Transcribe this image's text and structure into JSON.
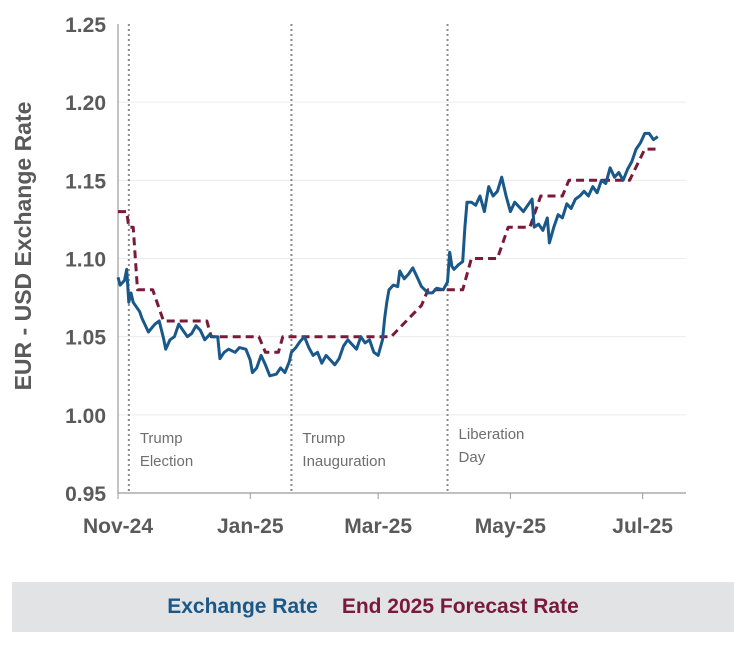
{
  "chart_data": {
    "type": "line",
    "xlabel": "",
    "ylabel": "EUR - USD Exchange Rate",
    "ylim": [
      0.95,
      1.25
    ],
    "xlim": [
      "2024-11-01",
      "2025-07-21"
    ],
    "yticks": [
      "1.25",
      "1.20",
      "1.15",
      "1.10",
      "1.05",
      "1.00",
      "0.95"
    ],
    "xticks": [
      {
        "date": "2024-11-01",
        "label": "Nov-24"
      },
      {
        "date": "2025-01-01",
        "label": "Jan-25"
      },
      {
        "date": "2025-03-01",
        "label": "Mar-25"
      },
      {
        "date": "2025-05-01",
        "label": "May-25"
      },
      {
        "date": "2025-07-01",
        "label": "Jul-25"
      }
    ],
    "grid": "horizontal",
    "legend_position": "bottom",
    "events": [
      {
        "date": "2024-11-06",
        "label_lines": [
          "Trump",
          "Election"
        ]
      },
      {
        "date": "2025-01-20",
        "label_lines": [
          "Trump",
          "Inauguration"
        ]
      },
      {
        "date": "2025-04-02",
        "label_lines": [
          "Liberation",
          "Day"
        ]
      }
    ],
    "series": [
      {
        "name": "Exchange Rate",
        "color": "#1a5889",
        "style": "solid",
        "points": [
          [
            "2024-11-01",
            1.088
          ],
          [
            "2024-11-02",
            1.083
          ],
          [
            "2024-11-04",
            1.086
          ],
          [
            "2024-11-05",
            1.093
          ],
          [
            "2024-11-06",
            1.072
          ],
          [
            "2024-11-07",
            1.078
          ],
          [
            "2024-11-08",
            1.072
          ],
          [
            "2024-11-11",
            1.066
          ],
          [
            "2024-11-12",
            1.062
          ],
          [
            "2024-11-14",
            1.056
          ],
          [
            "2024-11-15",
            1.053
          ],
          [
            "2024-11-18",
            1.058
          ],
          [
            "2024-11-20",
            1.06
          ],
          [
            "2024-11-22",
            1.049
          ],
          [
            "2024-11-23",
            1.042
          ],
          [
            "2024-11-25",
            1.048
          ],
          [
            "2024-11-27",
            1.05
          ],
          [
            "2024-11-29",
            1.058
          ],
          [
            "2024-12-01",
            1.054
          ],
          [
            "2024-12-03",
            1.05
          ],
          [
            "2024-12-05",
            1.052
          ],
          [
            "2024-12-07",
            1.057
          ],
          [
            "2024-12-09",
            1.054
          ],
          [
            "2024-12-11",
            1.048
          ],
          [
            "2024-12-13",
            1.051
          ],
          [
            "2024-12-15",
            1.05
          ],
          [
            "2024-12-17",
            1.05
          ],
          [
            "2024-12-18",
            1.036
          ],
          [
            "2024-12-20",
            1.04
          ],
          [
            "2024-12-22",
            1.042
          ],
          [
            "2024-12-25",
            1.04
          ],
          [
            "2024-12-27",
            1.043
          ],
          [
            "2024-12-30",
            1.042
          ],
          [
            "2025-01-01",
            1.035
          ],
          [
            "2025-01-02",
            1.027
          ],
          [
            "2025-01-04",
            1.03
          ],
          [
            "2025-01-06",
            1.038
          ],
          [
            "2025-01-08",
            1.032
          ],
          [
            "2025-01-10",
            1.025
          ],
          [
            "2025-01-13",
            1.026
          ],
          [
            "2025-01-15",
            1.03
          ],
          [
            "2025-01-17",
            1.027
          ],
          [
            "2025-01-19",
            1.034
          ],
          [
            "2025-01-20",
            1.04
          ],
          [
            "2025-01-22",
            1.043
          ],
          [
            "2025-01-24",
            1.047
          ],
          [
            "2025-01-26",
            1.05
          ],
          [
            "2025-01-28",
            1.043
          ],
          [
            "2025-01-30",
            1.038
          ],
          [
            "2025-02-01",
            1.04
          ],
          [
            "2025-02-03",
            1.033
          ],
          [
            "2025-02-05",
            1.038
          ],
          [
            "2025-02-07",
            1.035
          ],
          [
            "2025-02-09",
            1.032
          ],
          [
            "2025-02-11",
            1.036
          ],
          [
            "2025-02-13",
            1.044
          ],
          [
            "2025-02-15",
            1.048
          ],
          [
            "2025-02-17",
            1.045
          ],
          [
            "2025-02-19",
            1.042
          ],
          [
            "2025-02-21",
            1.05
          ],
          [
            "2025-02-23",
            1.046
          ],
          [
            "2025-02-25",
            1.048
          ],
          [
            "2025-02-27",
            1.04
          ],
          [
            "2025-03-01",
            1.038
          ],
          [
            "2025-03-03",
            1.048
          ],
          [
            "2025-03-04",
            1.062
          ],
          [
            "2025-03-05",
            1.072
          ],
          [
            "2025-03-06",
            1.08
          ],
          [
            "2025-03-08",
            1.083
          ],
          [
            "2025-03-10",
            1.082
          ],
          [
            "2025-03-11",
            1.092
          ],
          [
            "2025-03-13",
            1.087
          ],
          [
            "2025-03-15",
            1.09
          ],
          [
            "2025-03-17",
            1.094
          ],
          [
            "2025-03-19",
            1.088
          ],
          [
            "2025-03-21",
            1.082
          ],
          [
            "2025-03-24",
            1.078
          ],
          [
            "2025-03-26",
            1.078
          ],
          [
            "2025-03-28",
            1.081
          ],
          [
            "2025-03-31",
            1.08
          ],
          [
            "2025-04-02",
            1.085
          ],
          [
            "2025-04-03",
            1.104
          ],
          [
            "2025-04-04",
            1.095
          ],
          [
            "2025-04-05",
            1.093
          ],
          [
            "2025-04-07",
            1.096
          ],
          [
            "2025-04-09",
            1.098
          ],
          [
            "2025-04-10",
            1.12
          ],
          [
            "2025-04-11",
            1.136
          ],
          [
            "2025-04-13",
            1.136
          ],
          [
            "2025-04-15",
            1.134
          ],
          [
            "2025-04-17",
            1.14
          ],
          [
            "2025-04-19",
            1.13
          ],
          [
            "2025-04-21",
            1.146
          ],
          [
            "2025-04-23",
            1.14
          ],
          [
            "2025-04-25",
            1.143
          ],
          [
            "2025-04-27",
            1.152
          ],
          [
            "2025-04-29",
            1.14
          ],
          [
            "2025-05-01",
            1.13
          ],
          [
            "2025-05-03",
            1.136
          ],
          [
            "2025-05-05",
            1.133
          ],
          [
            "2025-05-07",
            1.13
          ],
          [
            "2025-05-09",
            1.134
          ],
          [
            "2025-05-11",
            1.138
          ],
          [
            "2025-05-12",
            1.12
          ],
          [
            "2025-05-14",
            1.122
          ],
          [
            "2025-05-16",
            1.118
          ],
          [
            "2025-05-18",
            1.126
          ],
          [
            "2025-05-19",
            1.11
          ],
          [
            "2025-05-21",
            1.12
          ],
          [
            "2025-05-23",
            1.128
          ],
          [
            "2025-05-25",
            1.126
          ],
          [
            "2025-05-27",
            1.135
          ],
          [
            "2025-05-29",
            1.132
          ],
          [
            "2025-05-31",
            1.138
          ],
          [
            "2025-06-02",
            1.14
          ],
          [
            "2025-06-04",
            1.143
          ],
          [
            "2025-06-06",
            1.14
          ],
          [
            "2025-06-08",
            1.146
          ],
          [
            "2025-06-10",
            1.142
          ],
          [
            "2025-06-12",
            1.15
          ],
          [
            "2025-06-14",
            1.148
          ],
          [
            "2025-06-16",
            1.158
          ],
          [
            "2025-06-18",
            1.152
          ],
          [
            "2025-06-20",
            1.155
          ],
          [
            "2025-06-22",
            1.15
          ],
          [
            "2025-06-24",
            1.157
          ],
          [
            "2025-06-26",
            1.162
          ],
          [
            "2025-06-28",
            1.17
          ],
          [
            "2025-06-30",
            1.174
          ],
          [
            "2025-07-02",
            1.18
          ],
          [
            "2025-07-04",
            1.18
          ],
          [
            "2025-07-06",
            1.176
          ],
          [
            "2025-07-08",
            1.178
          ]
        ]
      },
      {
        "name": "End 2025 Forecast Rate",
        "color": "#7a1a3a",
        "style": "dashed",
        "points": [
          [
            "2024-11-01",
            1.13
          ],
          [
            "2024-11-05",
            1.13
          ],
          [
            "2024-11-06",
            1.12
          ],
          [
            "2024-11-08",
            1.12
          ],
          [
            "2024-11-10",
            1.08
          ],
          [
            "2024-11-17",
            1.08
          ],
          [
            "2024-11-22",
            1.06
          ],
          [
            "2024-12-12",
            1.06
          ],
          [
            "2024-12-14",
            1.05
          ],
          [
            "2025-01-05",
            1.05
          ],
          [
            "2025-01-08",
            1.04
          ],
          [
            "2025-01-14",
            1.04
          ],
          [
            "2025-01-16",
            1.05
          ],
          [
            "2025-03-07",
            1.05
          ],
          [
            "2025-03-14",
            1.06
          ],
          [
            "2025-03-21",
            1.07
          ],
          [
            "2025-03-24",
            1.08
          ],
          [
            "2025-04-09",
            1.08
          ],
          [
            "2025-04-13",
            1.1
          ],
          [
            "2025-04-25",
            1.1
          ],
          [
            "2025-04-30",
            1.12
          ],
          [
            "2025-05-10",
            1.12
          ],
          [
            "2025-05-15",
            1.14
          ],
          [
            "2025-05-25",
            1.14
          ],
          [
            "2025-05-28",
            1.15
          ],
          [
            "2025-06-25",
            1.15
          ],
          [
            "2025-07-02",
            1.17
          ],
          [
            "2025-07-08",
            1.17
          ]
        ]
      }
    ]
  },
  "legend": {
    "items": [
      {
        "label": "Exchange Rate",
        "color": "#1a5889"
      },
      {
        "label": "End 2025 Forecast Rate",
        "color": "#7a1a3a"
      }
    ]
  }
}
